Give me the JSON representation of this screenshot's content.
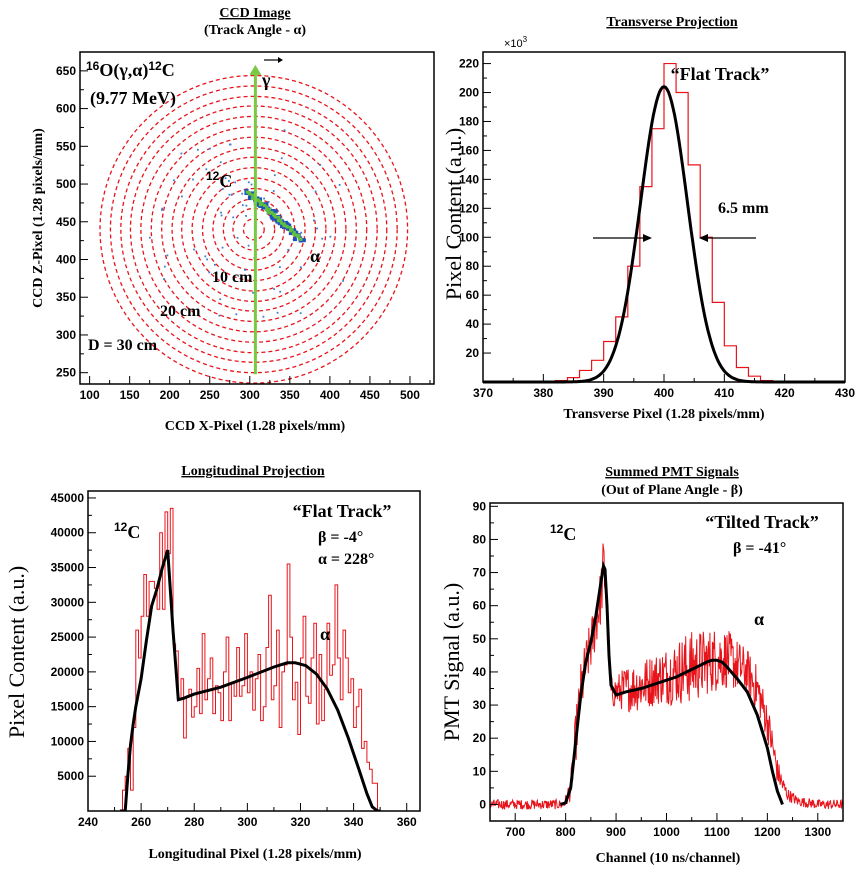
{
  "chart_data": [
    {
      "panel": "ccd",
      "type": "heatmap",
      "title": "CCD Image",
      "subtitle": "(Track Angle - α)",
      "xlabel": "CCD X-Pixel (1.28 pixels/mm)",
      "ylabel": "CCD Z-Pixel (1.28 pixels/mm)",
      "xlim": [
        88,
        530
      ],
      "ylim": [
        235,
        675
      ],
      "xticks": [
        "100",
        "150",
        "200",
        "250",
        "300",
        "350",
        "400",
        "450",
        "500"
      ],
      "yticks": [
        "250",
        "300",
        "350",
        "400",
        "450",
        "500",
        "550",
        "600",
        "650"
      ],
      "center": [
        305,
        440
      ],
      "circle_radii_px": [
        13,
        26,
        38,
        51,
        64,
        77,
        90,
        102,
        115,
        128,
        141,
        154,
        166,
        179,
        192
      ],
      "track_from": [
        297,
        490
      ],
      "track_to": [
        364,
        427
      ],
      "beam_from": [
        307,
        248
      ],
      "beam_to": [
        307,
        658
      ],
      "labels": {
        "reaction_left": "16",
        "reaction_main": "O(γ,α)",
        "reaction_right": "12",
        "reaction_end": "C",
        "energy": "(9.77 MeV)",
        "gamma": "γ",
        "carbon_mass": "12",
        "carbon": "C",
        "alpha": "α",
        "r10": "10 cm",
        "r20": "20 cm",
        "r30": "D = 30 cm"
      },
      "colors": {
        "circle": "#e8141b",
        "beam": "#7ac943",
        "track_core": "#5fbf3f",
        "track_outer": "#1f4fbf",
        "noise": "#3f7fd0"
      }
    },
    {
      "panel": "transverse",
      "type": "line",
      "title": "Transverse Projection",
      "xlabel": "Transverse Pixel (1.28 pixels/mm)",
      "ylabel": "Pixel Content (a.u.)",
      "multiplier": "×10",
      "multiplier_exp": "3",
      "xlim": [
        370,
        430
      ],
      "ylim": [
        0,
        228
      ],
      "xticks": [
        "370",
        "380",
        "390",
        "400",
        "410",
        "420",
        "430"
      ],
      "yticks": [
        "20",
        "40",
        "60",
        "80",
        "100",
        "120",
        "140",
        "160",
        "180",
        "200",
        "220"
      ],
      "histogram": {
        "bin_edges": [
          370,
          372,
          374,
          376,
          378,
          380,
          382,
          384,
          386,
          388,
          390,
          392,
          394,
          396,
          398,
          400,
          402,
          404,
          406,
          408,
          410,
          412,
          414,
          416,
          418,
          420,
          422,
          424,
          426,
          428,
          430
        ],
        "values": [
          0,
          0,
          0,
          0,
          0,
          0,
          1,
          3,
          8,
          15,
          28,
          45,
          80,
          135,
          175,
          220,
          200,
          150,
          100,
          55,
          25,
          10,
          4,
          1,
          0,
          0,
          0,
          0,
          0,
          0
        ]
      },
      "fit": {
        "type": "gaussian",
        "amplitude": 204,
        "mean": 400,
        "sigma": 3.9
      },
      "annotations": {
        "track": "“Flat Track”",
        "width": "6.5 mm"
      },
      "colors": {
        "histogram": "#e8141b",
        "fit": "#000000"
      }
    },
    {
      "panel": "longitudinal",
      "type": "line",
      "title": "Longitudinal Projection",
      "xlabel": "Longitudinal Pixel (1.28 pixels/mm)",
      "ylabel": "Pixel Content (a.u.)",
      "xlim": [
        240,
        365
      ],
      "ylim": [
        0,
        46000
      ],
      "xticks": [
        "240",
        "260",
        "280",
        "300",
        "320",
        "340",
        "360"
      ],
      "yticks": [
        "5000",
        "10000",
        "15000",
        "20000",
        "25000",
        "30000",
        "35000",
        "40000",
        "45000"
      ],
      "histogram": {
        "x_start": 252,
        "bin_width": 1,
        "values": [
          0,
          3000,
          5000,
          9000,
          3000,
          12000,
          26000,
          22000,
          28000,
          34000,
          28000,
          33000,
          33000,
          32000,
          29000,
          40000,
          29000,
          43000,
          37000,
          43500,
          24000,
          23000,
          16000,
          19000,
          10500,
          16500,
          17500,
          13500,
          15000,
          20500,
          14000,
          25500,
          16000,
          19000,
          22000,
          14000,
          18000,
          17000,
          13000,
          20000,
          25000,
          13000,
          18500,
          16500,
          23500,
          16500,
          18000,
          25500,
          17000,
          20000,
          14500,
          19000,
          22500,
          13000,
          15000,
          23500,
          31000,
          16000,
          18000,
          26000,
          12000,
          20000,
          21000,
          35500,
          25000,
          16000,
          18500,
          11000,
          22000,
          28000,
          16500,
          15500,
          22000,
          27000,
          12500,
          22500,
          13000,
          17500,
          27000,
          19500,
          21000,
          32500,
          22000,
          16000,
          26000,
          22000,
          17000,
          19000,
          12000,
          15000,
          17500,
          9000,
          10000,
          7000,
          6000,
          4000,
          4000,
          0,
          0,
          0
        ]
      },
      "fit": {
        "x": [
          252,
          254,
          255,
          256,
          257,
          258,
          260,
          262,
          264,
          266,
          268,
          270,
          272,
          274,
          276,
          278,
          280,
          290,
          300,
          310,
          315,
          318,
          322,
          326,
          330,
          334,
          338,
          342,
          345,
          347,
          349,
          350
        ],
        "y": [
          0,
          0,
          5000,
          9500,
          12500,
          15000,
          19000,
          24500,
          29500,
          32000,
          35000,
          37500,
          26000,
          16000,
          16200,
          16500,
          16800,
          17800,
          19200,
          20700,
          21300,
          21300,
          20900,
          19700,
          17600,
          14500,
          10500,
          6000,
          2500,
          600,
          0,
          0
        ]
      },
      "annotations": {
        "track": "“Flat Track”",
        "beta": "β = -4°",
        "alpha_angle": "α = 228°",
        "carbon_mass": "12",
        "carbon": "C",
        "alpha": "α"
      },
      "colors": {
        "histogram": "#e8141b",
        "fit": "#000000"
      }
    },
    {
      "panel": "pmt",
      "type": "line",
      "title": "Summed PMT Signals",
      "subtitle": "(Out of Plane Angle - β)",
      "xlabel": "Channel (10 ns/channel)",
      "ylabel": "PMT Signal (a.u.)",
      "xlim": [
        650,
        1350
      ],
      "ylim": [
        -5,
        91
      ],
      "xticks": [
        "700",
        "800",
        "900",
        "1000",
        "1100",
        "1200",
        "1300"
      ],
      "yticks": [
        "0",
        "10",
        "20",
        "30",
        "40",
        "50",
        "60",
        "70",
        "80",
        "90"
      ],
      "trace_envelope": {
        "x": [
          650,
          760,
          795,
          800,
          810,
          820,
          830,
          840,
          850,
          860,
          870,
          875,
          880,
          885,
          890,
          900,
          920,
          950,
          980,
          1000,
          1020,
          1040,
          1060,
          1080,
          1100,
          1120,
          1140,
          1160,
          1180,
          1200,
          1210,
          1220,
          1230,
          1240,
          1260,
          1300,
          1350
        ],
        "y": [
          0,
          0,
          0,
          1,
          5,
          20,
          34,
          42,
          48,
          55,
          63,
          72,
          66,
          48,
          34,
          34,
          35,
          36,
          38,
          39,
          40,
          41,
          42,
          43,
          44,
          44,
          42,
          40,
          35,
          25,
          18,
          10,
          6,
          3,
          1,
          0,
          0
        ],
        "noise": [
          1.5,
          1.5,
          1.5,
          2,
          4,
          8,
          9,
          8,
          8,
          8,
          9,
          10,
          10,
          8,
          5,
          5,
          7,
          8,
          8,
          9,
          10,
          11,
          11,
          10,
          10,
          9,
          8,
          7,
          7,
          6,
          5,
          4,
          3,
          2,
          1.5,
          1.5,
          1.5
        ]
      },
      "fit": {
        "x": [
          790,
          800,
          810,
          820,
          830,
          840,
          850,
          860,
          870,
          875,
          878,
          882,
          886,
          890,
          900,
          920,
          950,
          980,
          1000,
          1020,
          1040,
          1060,
          1080,
          1090,
          1100,
          1110,
          1120,
          1140,
          1160,
          1180,
          1200,
          1210,
          1220,
          1230
        ],
        "y": [
          0,
          0.5,
          5,
          19,
          33,
          43,
          49,
          57,
          67,
          72,
          71,
          60,
          45,
          36,
          33,
          34,
          35,
          36.5,
          37.5,
          38.5,
          40,
          41.5,
          43,
          43.5,
          43.5,
          43,
          41.5,
          38,
          34,
          27,
          17,
          10,
          4,
          0
        ]
      },
      "annotations": {
        "track": "“Tilted Track”",
        "beta": "β = -41°",
        "carbon_mass": "12",
        "carbon": "C",
        "alpha": "α"
      },
      "colors": {
        "trace": "#e8141b",
        "fit": "#000000"
      }
    }
  ]
}
